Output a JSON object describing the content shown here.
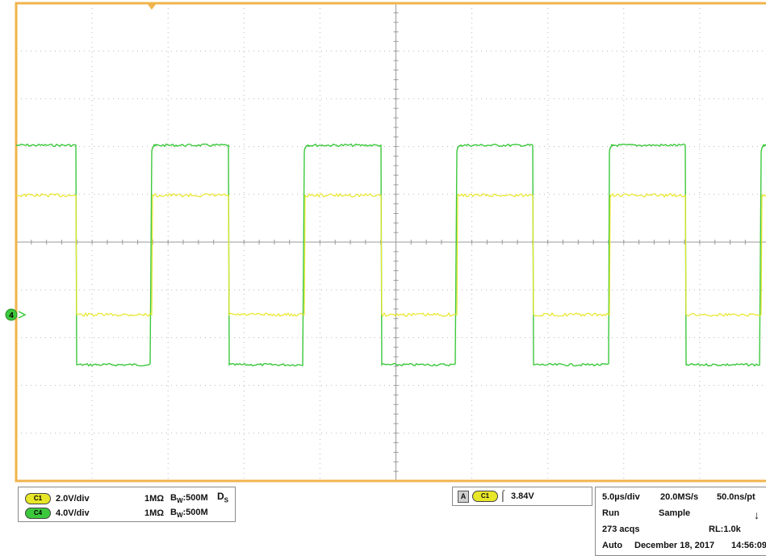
{
  "colors": {
    "grid_border": "#f0b44c",
    "grid_lines": "#9a9a9a",
    "ch1": "#e8e628",
    "ch4": "#3cc83c",
    "background": "#ffffff"
  },
  "scope": {
    "ground_marker_label": "4",
    "trigger_position_icon": "trigger-position-icon"
  },
  "channels": [
    {
      "badge": "C1",
      "scale": "2.0V/div",
      "impedance": "1MΩ",
      "bw_prefix": "B",
      "bw_sub": "W",
      "bw_value": ":500M",
      "color": "#e8e628"
    },
    {
      "badge": "C4",
      "scale": "4.0V/div",
      "impedance": "1MΩ",
      "bw_prefix": "B",
      "bw_sub": "W",
      "bw_value": ":500M",
      "color": "#3cc83c"
    }
  ],
  "ds_marker": {
    "main": "D",
    "sub": "S"
  },
  "trigger": {
    "source_letter": "A",
    "channel_badge": "C1",
    "slope_icon": "rising-edge-icon",
    "level": "3.84V"
  },
  "acquisition": {
    "horizontal_scale": "5.0µs/div",
    "sample_rate": "20.0MS/s",
    "resolution": "50.0ns/pt",
    "state": "Run",
    "mode": "Sample",
    "acqs": "273 acqs",
    "record_length": "RL:1.0k",
    "trigger_mode": "Auto",
    "date": "December 18, 2017",
    "time": "14:56:09"
  }
}
